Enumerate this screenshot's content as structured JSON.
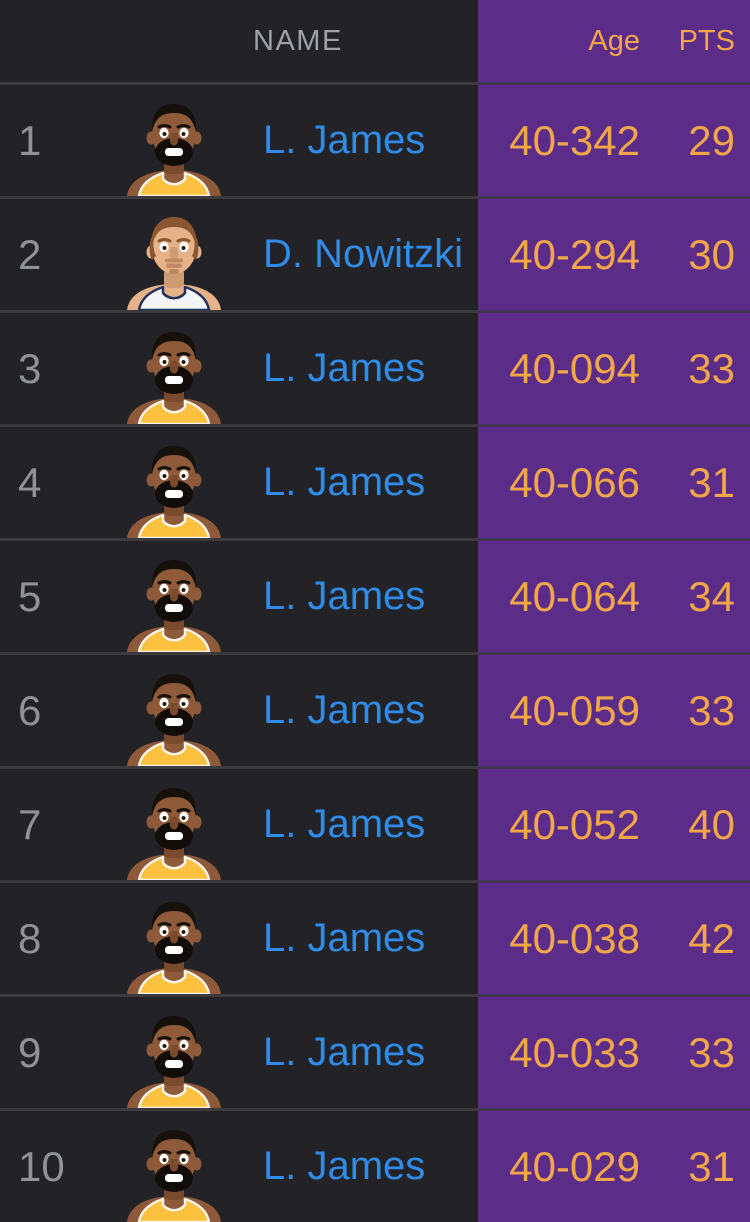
{
  "header": {
    "name": "NAME",
    "age": "Age",
    "pts": "PTS"
  },
  "colors": {
    "background": "#232227",
    "panel_purple": "#5b2d88",
    "accent_gold": "#f1a64a",
    "name_blue": "#2f8ce8",
    "rank_gray": "#8f9297",
    "header_gray": "#9da2a8",
    "divider_dark": "#3a3a3f",
    "divider_purple": "#463455"
  },
  "avatars": {
    "lebron": {
      "label": "L. James cartoon portrait, gold Lakers jersey",
      "style": "lebron",
      "skin": "#8e5a39",
      "skin_shade": "#7a4a2c",
      "hair": "#17110c",
      "beard": "#130d09",
      "jersey": "#fcc23f",
      "trim": "#f7f3ea"
    },
    "dirk": {
      "label": "D. Nowitzki cartoon portrait, white Mavericks jersey",
      "style": "dirk",
      "skin": "#e5b28a",
      "skin_shade": "#cd9a72",
      "hair": "#8a5731",
      "stubble": "#bd8a60",
      "jersey": "#f3f4f6",
      "trim": "#20315f"
    }
  },
  "rows": [
    {
      "rank": "1",
      "name": "L. James",
      "age": "40-342",
      "pts": "29",
      "avatar": "lebron"
    },
    {
      "rank": "2",
      "name": "D. Nowitzki",
      "age": "40-294",
      "pts": "30",
      "avatar": "dirk"
    },
    {
      "rank": "3",
      "name": "L. James",
      "age": "40-094",
      "pts": "33",
      "avatar": "lebron"
    },
    {
      "rank": "4",
      "name": "L. James",
      "age": "40-066",
      "pts": "31",
      "avatar": "lebron"
    },
    {
      "rank": "5",
      "name": "L. James",
      "age": "40-064",
      "pts": "34",
      "avatar": "lebron"
    },
    {
      "rank": "6",
      "name": "L. James",
      "age": "40-059",
      "pts": "33",
      "avatar": "lebron"
    },
    {
      "rank": "7",
      "name": "L. James",
      "age": "40-052",
      "pts": "40",
      "avatar": "lebron"
    },
    {
      "rank": "8",
      "name": "L. James",
      "age": "40-038",
      "pts": "42",
      "avatar": "lebron"
    },
    {
      "rank": "9",
      "name": "L. James",
      "age": "40-033",
      "pts": "33",
      "avatar": "lebron"
    },
    {
      "rank": "10",
      "name": "L. James",
      "age": "40-029",
      "pts": "31",
      "avatar": "lebron"
    }
  ]
}
